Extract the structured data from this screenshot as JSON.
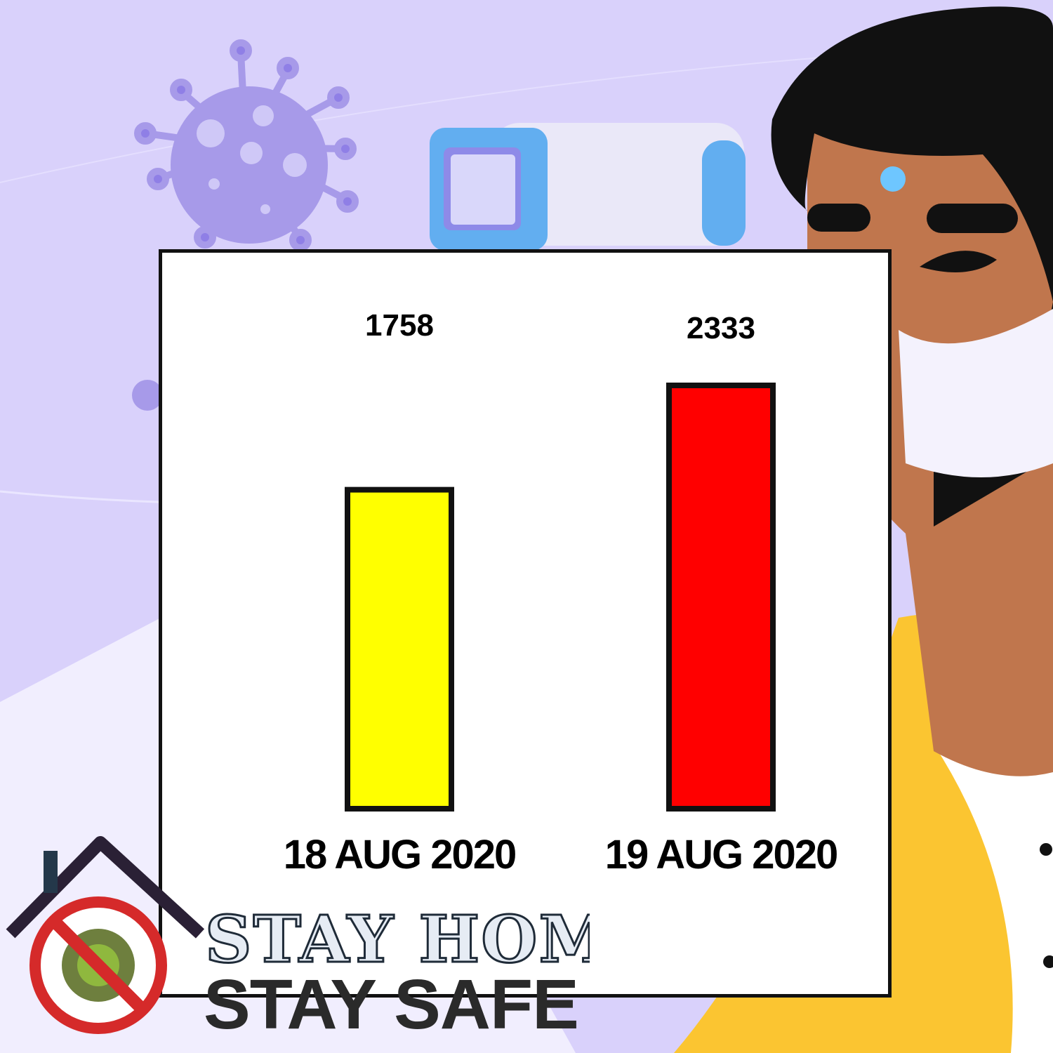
{
  "chart_data": {
    "type": "bar",
    "categories": [
      "18 AUG 2020",
      "19 AUG 2020"
    ],
    "values": [
      1758,
      2333
    ],
    "bar_colors": [
      "#ffff00",
      "#ff0000"
    ],
    "bar_outline": "#111111",
    "ylim": [
      0,
      2600
    ],
    "title": "",
    "xlabel": "",
    "ylabel": "",
    "grid": false,
    "legend": "none"
  },
  "slogan": {
    "line1": "STAY HOME",
    "line2": "STAY SAFE"
  },
  "colors": {
    "background": "#d9d1fb",
    "panel": "#ffffff",
    "skin": "#c0764d",
    "hair": "#111111",
    "jacket": "#fbc531",
    "virus": "#a79ae9",
    "thermometer": "#62aef0"
  },
  "icons": [
    "virus-icon",
    "thermometer-icon",
    "person-illustration",
    "house-icon",
    "no-virus-icon"
  ]
}
